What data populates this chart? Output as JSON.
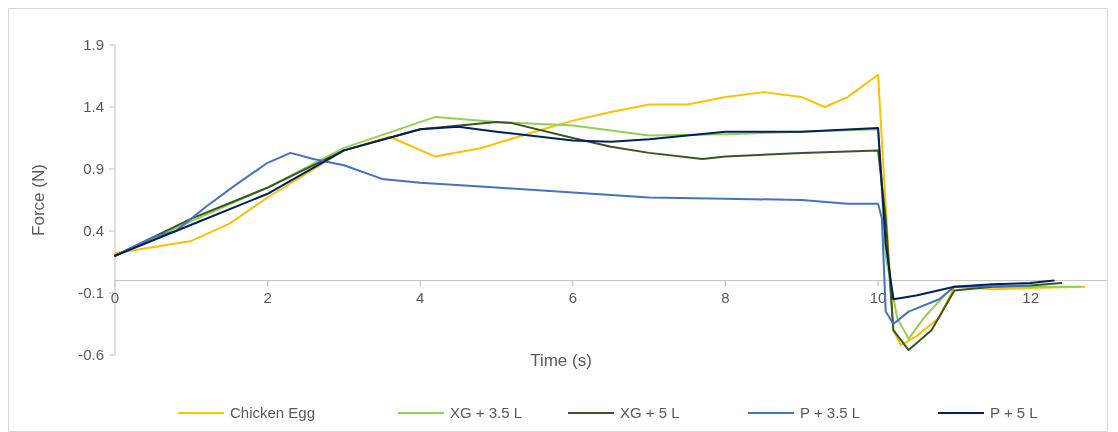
{
  "chart_data": {
    "type": "line",
    "xlabel": "Time (s)",
    "ylabel": "Force (N)",
    "xlim": [
      0,
      13
    ],
    "xticks": [
      0,
      2,
      4,
      6,
      8,
      10,
      12
    ],
    "ylim": [
      -0.6,
      1.9
    ],
    "yticks": [
      -0.6,
      -0.1,
      0.4,
      0.9,
      1.4,
      1.9
    ],
    "grid": false,
    "legend": "bottom",
    "series": [
      {
        "name": "Chicken Egg",
        "color": "#ffc000",
        "x": [
          0,
          1,
          1.5,
          2,
          3,
          3.6,
          4.2,
          4.8,
          5.5,
          6,
          6.5,
          7,
          7.5,
          8,
          8.5,
          9,
          9.3,
          9.6,
          10,
          10.1,
          10.2,
          10.3,
          10.5,
          10.8,
          11,
          11.5,
          12,
          12.7
        ],
        "values": [
          0.22,
          0.32,
          0.46,
          0.67,
          1.05,
          1.16,
          1.0,
          1.07,
          1.2,
          1.29,
          1.36,
          1.42,
          1.42,
          1.48,
          1.52,
          1.48,
          1.4,
          1.48,
          1.66,
          0.6,
          -0.4,
          -0.52,
          -0.45,
          -0.3,
          -0.05,
          -0.07,
          -0.06,
          -0.05
        ]
      },
      {
        "name": "XG + 3.5 L",
        "color": "#92d050",
        "x": [
          0,
          1,
          2,
          3,
          4.2,
          5,
          6,
          7,
          8,
          9,
          10,
          10.1,
          10.25,
          10.4,
          10.6,
          10.9,
          11,
          12,
          12.65
        ],
        "values": [
          0.2,
          0.48,
          0.75,
          1.07,
          1.32,
          1.28,
          1.25,
          1.17,
          1.18,
          1.2,
          1.22,
          0.2,
          -0.3,
          -0.47,
          -0.3,
          -0.1,
          -0.05,
          -0.05,
          -0.05
        ]
      },
      {
        "name": "XG + 5 L",
        "color": "#375623",
        "x": [
          0,
          1,
          2,
          3,
          4,
          5,
          5.2,
          6,
          6.5,
          7,
          7.7,
          8,
          9,
          10,
          10.1,
          10.2,
          10.4,
          10.7,
          11,
          11.5,
          12,
          12.4
        ],
        "values": [
          0.2,
          0.5,
          0.75,
          1.05,
          1.22,
          1.28,
          1.27,
          1.15,
          1.08,
          1.03,
          0.98,
          1.0,
          1.03,
          1.05,
          0.5,
          -0.4,
          -0.56,
          -0.4,
          -0.08,
          -0.05,
          -0.04,
          -0.02
        ]
      },
      {
        "name": "P + 3.5 L",
        "color": "#4472c4",
        "x": [
          0,
          0.5,
          0.8,
          1.2,
          1.6,
          2,
          2.3,
          2.6,
          3,
          3.5,
          4,
          5,
          6,
          7,
          8,
          9,
          9.6,
          10,
          10.05,
          10.1,
          10.2,
          10.4,
          10.8,
          11,
          12
        ],
        "values": [
          0.2,
          0.35,
          0.4,
          0.6,
          0.78,
          0.95,
          1.03,
          0.98,
          0.93,
          0.82,
          0.79,
          0.75,
          0.71,
          0.67,
          0.66,
          0.65,
          0.62,
          0.62,
          0.5,
          -0.25,
          -0.35,
          -0.25,
          -0.15,
          -0.05,
          -0.04
        ]
      },
      {
        "name": "P + 5 L",
        "color": "#002060",
        "x": [
          0,
          1,
          2,
          3,
          4,
          4.5,
          5,
          6,
          6.5,
          7,
          8,
          9,
          10,
          10.1,
          10.2,
          10.5,
          11,
          11.5,
          12,
          12.3
        ],
        "values": [
          0.2,
          0.45,
          0.7,
          1.05,
          1.22,
          1.24,
          1.2,
          1.13,
          1.12,
          1.14,
          1.2,
          1.2,
          1.23,
          0.3,
          -0.15,
          -0.12,
          -0.05,
          -0.03,
          -0.02,
          0.0
        ]
      }
    ]
  }
}
